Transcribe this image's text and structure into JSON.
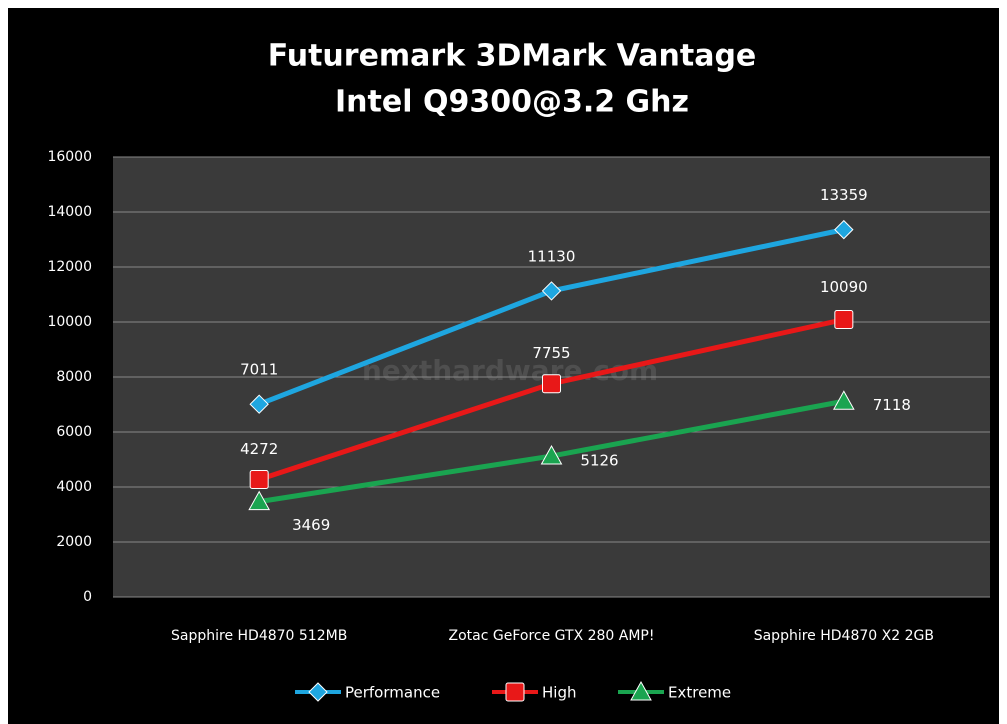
{
  "chart_data": {
    "type": "line",
    "title": "Futuremark 3DMark Vantage",
    "subtitle": "Intel Q9300@3.2 Ghz",
    "annotation": "nexthardware.com",
    "categories": [
      "Sapphire HD4870 512MB",
      "Zotac GeForce GTX 280 AMP!",
      "Sapphire HD4870 X2 2GB"
    ],
    "series": [
      {
        "name": "Performance",
        "color": "#1ea6e0",
        "values": [
          7011,
          11130,
          13359
        ]
      },
      {
        "name": "High",
        "color": "#e81818",
        "values": [
          4272,
          7755,
          10090
        ]
      },
      {
        "name": "Extreme",
        "color": "#1aa450",
        "values": [
          3469,
          5126,
          7118
        ]
      }
    ],
    "ylim": [
      0,
      16000
    ],
    "yticks": [
      0,
      2000,
      4000,
      6000,
      8000,
      10000,
      12000,
      14000,
      16000
    ],
    "grid": true,
    "legend": "bottom"
  }
}
